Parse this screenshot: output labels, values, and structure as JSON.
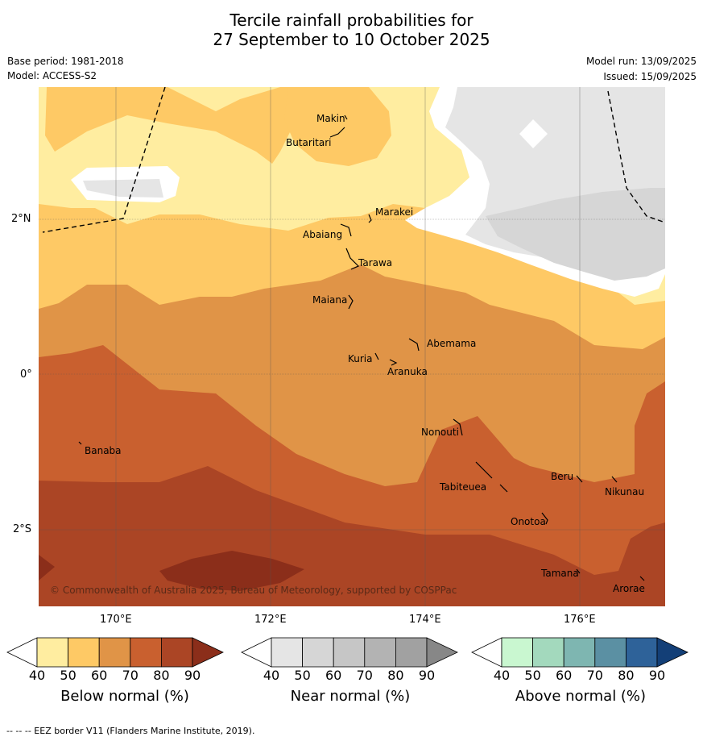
{
  "title": {
    "line1": "Tercile rainfall probabilities for",
    "line2": "27 September to 10 October 2025"
  },
  "info": {
    "base_period": "Base period: 1981-2018",
    "model": "Model: ACCESS-S2",
    "model_run": "Model run: 13/09/2025",
    "issued": "Issued: 15/09/2025"
  },
  "map": {
    "lat_ticks": [
      "2°N",
      "0°",
      "2°S"
    ],
    "lon_ticks": [
      "170°E",
      "172°E",
      "174°E",
      "176°E"
    ],
    "places": [
      "Makin",
      "Butaritari",
      "Marakei",
      "Abaiang",
      "Tarawa",
      "Maiana",
      "Abemama",
      "Kuria",
      "Aranuka",
      "Banaba",
      "Nonouti",
      "Tabiteuea",
      "Beru",
      "Nikunau",
      "Onotoa",
      "Tamana",
      "Arorae"
    ],
    "copyright": "© Commonwealth of Australia 2025, Bureau of Meteorology, supported by COSPPac"
  },
  "legend": {
    "ticks": [
      "40",
      "50",
      "60",
      "70",
      "80",
      "90"
    ],
    "below": {
      "label": "Below normal (%)",
      "colors": [
        "#ffeda0",
        "#fec965",
        "#e09447",
        "#c9602f",
        "#ab4525",
        "#8b2e1a"
      ]
    },
    "near": {
      "label": "Near normal (%)",
      "colors": [
        "#e5e5e5",
        "#d6d6d6",
        "#c6c6c6",
        "#b3b3b3",
        "#a1a1a1",
        "#878787"
      ]
    },
    "above": {
      "label": "Above normal (%)",
      "colors": [
        "#c9f7d0",
        "#a3d9bd",
        "#7eb6b1",
        "#5b90a3",
        "#2e6299",
        "#133f77"
      ]
    }
  },
  "footer": {
    "eez": "--  --  -- EEZ border V11 (Flanders Marine Institute, 2019)."
  }
}
